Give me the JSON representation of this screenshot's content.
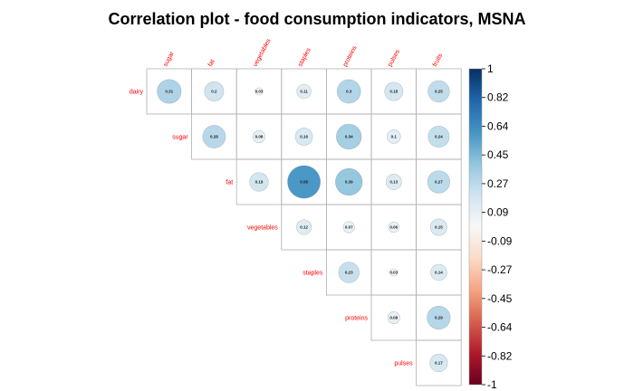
{
  "chart_data": {
    "type": "heatmap",
    "subtype": "correlation-upper-circle",
    "title": "Correlation plot - food consumption indicators, MSNA",
    "row_labels": [
      "dairy",
      "sugar",
      "fat",
      "vegetables",
      "staples",
      "proteins",
      "pulses"
    ],
    "col_labels": [
      "sugar",
      "fat",
      "vegetables",
      "staples",
      "proteins",
      "pulses",
      "fruits"
    ],
    "matrix": [
      [
        "0.31",
        "0.2",
        "0.03",
        "0.11",
        "0.3",
        "0.18",
        "0.25"
      ],
      [
        null,
        "0.28",
        "0.08",
        "0.16",
        "0.34",
        "0.1",
        "0.24"
      ],
      [
        null,
        null,
        "0.19",
        "0.58",
        "0.39",
        "0.13",
        "0.27"
      ],
      [
        null,
        null,
        null,
        "0.12",
        "0.07",
        "0.06",
        "0.15"
      ],
      [
        null,
        null,
        null,
        null,
        "0.23",
        "0.03",
        "0.14"
      ],
      [
        null,
        null,
        null,
        null,
        null,
        "0.08",
        "0.29"
      ],
      [
        null,
        null,
        null,
        null,
        null,
        null,
        "0.17"
      ]
    ],
    "colorbar": {
      "range": [
        -1,
        1
      ],
      "tick_labels": [
        "1",
        "0.82",
        "0.64",
        "0.45",
        "0.27",
        "0.09",
        "-0.09",
        "-0.27",
        "-0.45",
        "-0.64",
        "-0.82",
        "-1"
      ],
      "colors": [
        "#053061",
        "#2166ac",
        "#4393c3",
        "#92c5de",
        "#d1e5f0",
        "#f7f7f7",
        "#fddbc7",
        "#f4a582",
        "#d6604d",
        "#b2182b",
        "#67001f"
      ]
    },
    "label_color": "#ff0000"
  }
}
